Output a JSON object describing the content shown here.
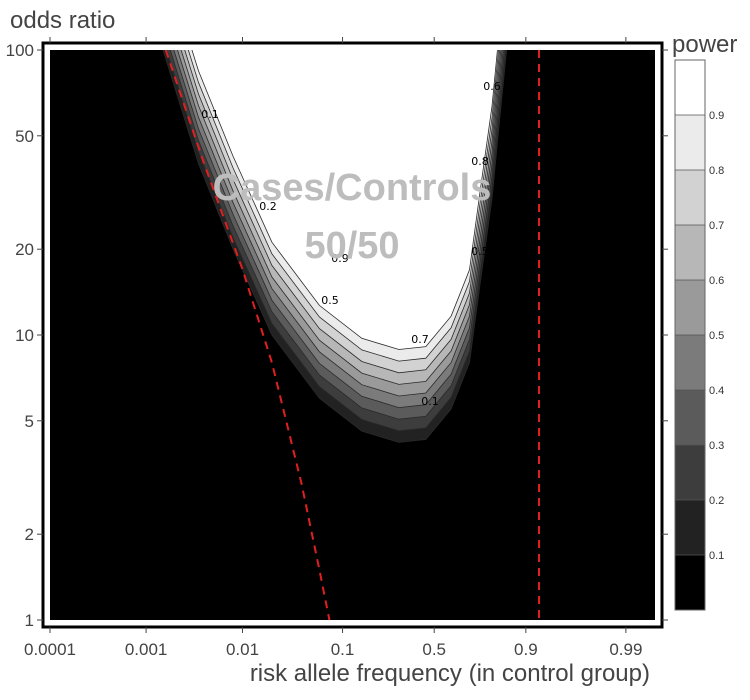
{
  "chart_data": {
    "type": "contour",
    "ylabel": "odds ratio",
    "xlabel": "risk allele frequency (in control group)",
    "x_scale": "logit",
    "y_scale": "log",
    "xticks": [
      {
        "value": 0.0001,
        "label": "0.0001"
      },
      {
        "value": 0.001,
        "label": "0.001"
      },
      {
        "value": 0.01,
        "label": "0.01"
      },
      {
        "value": 0.1,
        "label": "0.1"
      },
      {
        "value": 0.5,
        "label": "0.5"
      },
      {
        "value": 0.9,
        "label": "0.9"
      },
      {
        "value": 0.99,
        "label": "0.99"
      }
    ],
    "yticks": [
      {
        "value": 1,
        "label": "1"
      },
      {
        "value": 2,
        "label": "2"
      },
      {
        "value": 5,
        "label": "5"
      },
      {
        "value": 10,
        "label": "10"
      },
      {
        "value": 20,
        "label": "20"
      },
      {
        "value": 50,
        "label": "50"
      },
      {
        "value": 100,
        "label": "100"
      }
    ],
    "xlim": [
      0.0001,
      0.995
    ],
    "ylim": [
      1,
      100
    ],
    "annotation": {
      "line1": "Cases/Controls",
      "line2": "50/50"
    },
    "colorbar": {
      "title": "power",
      "levels": [
        0.1,
        0.2,
        0.3,
        0.4,
        0.5,
        0.6,
        0.7,
        0.8,
        0.9
      ],
      "level_labels": [
        "0.1",
        "0.2",
        "0.3",
        "0.4",
        "0.5",
        "0.6",
        "0.7",
        "0.8",
        "0.9"
      ],
      "colors": [
        "#000000",
        "#222222",
        "#3d3d3d",
        "#5b5b5b",
        "#7b7b7b",
        "#9a9a9a",
        "#b7b7b7",
        "#d2d2d2",
        "#ebebeb",
        "#ffffff"
      ]
    },
    "power_region": {
      "lower_edge": [
        {
          "freq": 0.0015,
          "or": 100
        },
        {
          "freq": 0.0035,
          "or": 40
        },
        {
          "freq": 0.008,
          "or": 20
        },
        {
          "freq": 0.02,
          "or": 10
        },
        {
          "freq": 0.06,
          "or": 6
        },
        {
          "freq": 0.15,
          "or": 4.6
        },
        {
          "freq": 0.3,
          "or": 4.2
        },
        {
          "freq": 0.45,
          "or": 4.3
        },
        {
          "freq": 0.6,
          "or": 5.5
        },
        {
          "freq": 0.7,
          "or": 8
        },
        {
          "freq": 0.75,
          "or": 15
        },
        {
          "freq": 0.8,
          "or": 30
        },
        {
          "freq": 0.83,
          "or": 60
        },
        {
          "freq": 0.85,
          "or": 100
        }
      ],
      "band_width_ln_or": 0.75
    },
    "contour_labels": [
      "0.1",
      "0.2",
      "0.5",
      "0.9",
      "0.7",
      "0.1",
      "0.5",
      "0.8",
      "0.6"
    ],
    "reference_lines": [
      {
        "color": "#e02020",
        "style": "dashed",
        "points": [
          {
            "freq": 0.0016,
            "or": 100
          },
          {
            "freq": 0.004,
            "or": 40
          },
          {
            "freq": 0.01,
            "or": 17
          },
          {
            "freq": 0.02,
            "or": 8
          },
          {
            "freq": 0.04,
            "or": 3
          },
          {
            "freq": 0.06,
            "or": 1.5
          },
          {
            "freq": 0.075,
            "or": 1
          }
        ]
      },
      {
        "color": "#e02020",
        "style": "dashed",
        "points": [
          {
            "freq": 0.925,
            "or": 100
          },
          {
            "freq": 0.925,
            "or": 1
          }
        ]
      }
    ]
  }
}
